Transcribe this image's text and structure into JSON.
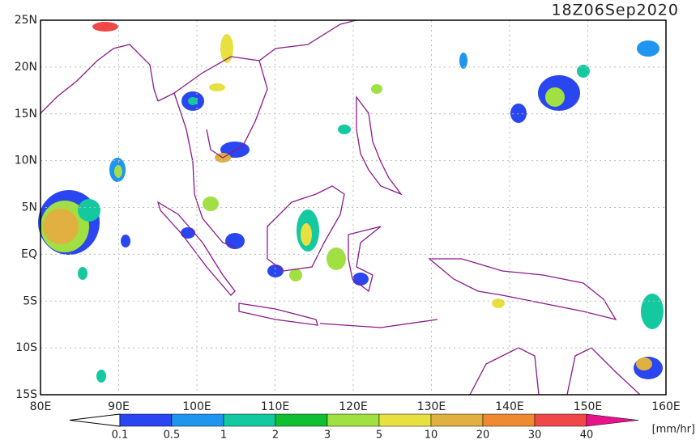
{
  "title": "18Z06Sep2020",
  "map": {
    "lat_labels": [
      "25N",
      "20N",
      "15N",
      "10N",
      "5N",
      "EQ",
      "5S",
      "10S",
      "15S"
    ],
    "lon_labels": [
      "80E",
      "90E",
      "100E",
      "110E",
      "120E",
      "130E",
      "140E",
      "150E",
      "160E"
    ]
  },
  "colorbar": {
    "labels": [
      "0.1",
      "0.5",
      "1",
      "2",
      "3",
      "5",
      "10",
      "20",
      "30",
      "40"
    ],
    "colors": [
      "#2a46f0",
      "#1e96f0",
      "#14c8a0",
      "#10c030",
      "#a0e040",
      "#e8e040",
      "#e0b040",
      "#f08a30",
      "#f04848",
      "#e8128c"
    ],
    "unit": "[mm/hr]"
  }
}
